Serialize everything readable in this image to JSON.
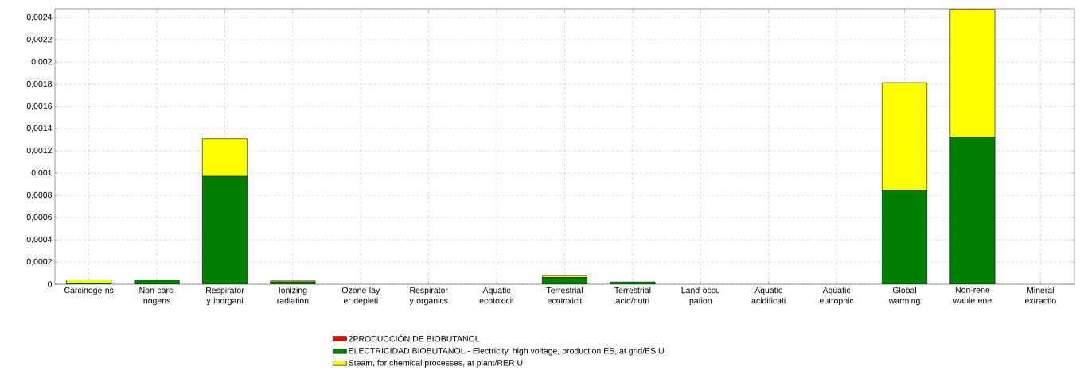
{
  "chart_data": {
    "type": "bar",
    "stacked": true,
    "categories": [
      "Carcinoge ns",
      "Non-carci nogens",
      "Respirator y inorgani",
      "Ionizing radiation",
      "Ozone lay er depleti",
      "Respirator y organics",
      "Aquatic ecotoxicit",
      "Terrestrial ecotoxicit",
      "Terrestrial acid/nutri",
      "Land occu pation",
      "Aquatic acidificati",
      "Aquatic eutrophic",
      "Global warming",
      "Non-rene wable ene",
      "Mineral extractio"
    ],
    "series": [
      {
        "name": "2PRODUCCIÓN DE BIOBUTANOL",
        "color": "#ff0000",
        "values": [
          0,
          0,
          0,
          0,
          0,
          0,
          0,
          0,
          0,
          0,
          0,
          0,
          0,
          0,
          0
        ]
      },
      {
        "name": "ELECTRICIDAD BIOBUTANOL - Electricity, high voltage, production ES, at grid/ES U",
        "color": "#008000",
        "values": [
          1e-05,
          4e-05,
          0.00097,
          2e-05,
          0,
          0,
          0,
          6e-05,
          2e-05,
          0,
          0,
          0,
          0.000845,
          0.001325,
          0
        ]
      },
      {
        "name": "Steam, for chemical processes, at plant/RER U",
        "color": "#ffff00",
        "values": [
          3e-05,
          0,
          0.00034,
          1e-05,
          0,
          0,
          0,
          2e-05,
          0,
          0,
          0,
          0,
          0.00097,
          0.00115,
          0
        ]
      }
    ],
    "ylim": [
      0,
      0.00248
    ],
    "yticks": [
      {
        "value": 0,
        "label": "0"
      },
      {
        "value": 0.0002,
        "label": "0,0002"
      },
      {
        "value": 0.0004,
        "label": "0,0004"
      },
      {
        "value": 0.0006,
        "label": "0,0006"
      },
      {
        "value": 0.0008,
        "label": "0,0008"
      },
      {
        "value": 0.001,
        "label": "0,001"
      },
      {
        "value": 0.0012,
        "label": "0,0012"
      },
      {
        "value": 0.0014,
        "label": "0,0014"
      },
      {
        "value": 0.0016,
        "label": "0,0016"
      },
      {
        "value": 0.0018,
        "label": "0,0018"
      },
      {
        "value": 0.002,
        "label": "0,002"
      },
      {
        "value": 0.0022,
        "label": "0,0022"
      },
      {
        "value": 0.0024,
        "label": "0,0024"
      }
    ],
    "grid": true,
    "legend": "bottom"
  }
}
